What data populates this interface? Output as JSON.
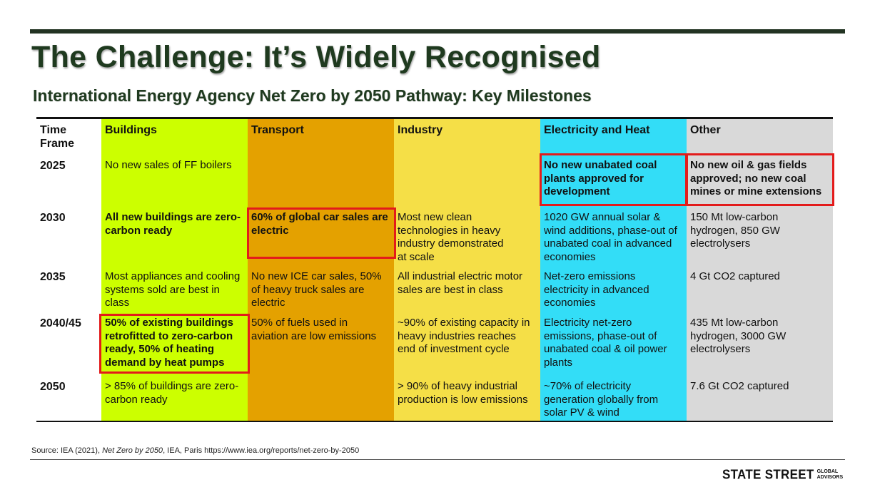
{
  "title": "The Challenge: It’s Widely Recognised",
  "subtitle": "International Energy Agency Net Zero by 2050 Pathway: Key Milestones",
  "colors": {
    "buildings": "#ccff00",
    "transport": "#e4a100",
    "industry": "#f5df47",
    "electricity": "#33ddf7",
    "other": "#d9d9d9",
    "highlight": "#e31b1b"
  },
  "headers": {
    "time": "Time Frame",
    "buildings": "Buildings",
    "transport": "Transport",
    "industry": "Industry",
    "electricity": "Electricity and Heat",
    "other": "Other"
  },
  "rows": [
    {
      "time": "2025",
      "buildings": "No new sales of FF boilers",
      "transport": "",
      "industry": "",
      "electricity": "No new unabated coal plants approved for development",
      "other": "No new oil & gas fields approved; no new coal mines or mine extensions"
    },
    {
      "time": "2030",
      "buildings": "All new buildings are zero-carbon ready",
      "transport": "60% of global car sales are electric",
      "industry": "Most new clean technologies in heavy industry demonstrated at scale",
      "electricity": "1020 GW annual solar & wind additions, phase-out of unabated coal in advanced economies",
      "other": "150 Mt low-carbon hydrogen, 850 GW electrolysers"
    },
    {
      "time": "2035",
      "buildings": "Most appliances and cooling systems sold are best in class",
      "transport": "No new ICE car sales, 50% of heavy truck sales are electric",
      "industry": "All industrial electric motor sales are best in class",
      "electricity": "Net-zero emissions electricity in advanced economies",
      "other": "4 Gt CO2 captured"
    },
    {
      "time": "2040/45",
      "buildings": "50% of existing buildings retrofitted to zero-carbon ready, 50% of heating demand by heat pumps",
      "transport": "50% of fuels used in aviation are low emissions",
      "industry": "~90% of existing capacity in heavy industries reaches end of  investment cycle",
      "electricity": "Electricity net-zero emissions, phase-out of unabated coal & oil power plants",
      "other": "435 Mt low-carbon hydrogen, 3000 GW electrolysers"
    },
    {
      "time": "2050",
      "buildings": "> 85% of buildings are zero-carbon ready",
      "transport": "",
      "industry": "> 90% of heavy industrial production is low emissions",
      "electricity": "~70% of electricity generation globally from solar PV & wind",
      "other": "7.6 Gt CO2 captured"
    }
  ],
  "source": {
    "prefix": "Source: IEA (2021), ",
    "italic": "Net Zero by 2050",
    "suffix": ", IEA, Paris https://www.iea.org/reports/net-zero-by-2050"
  },
  "logo": {
    "main": "STATE STREET",
    "sub_line1": "GLOBAL",
    "sub_line2": "ADVISORS"
  }
}
